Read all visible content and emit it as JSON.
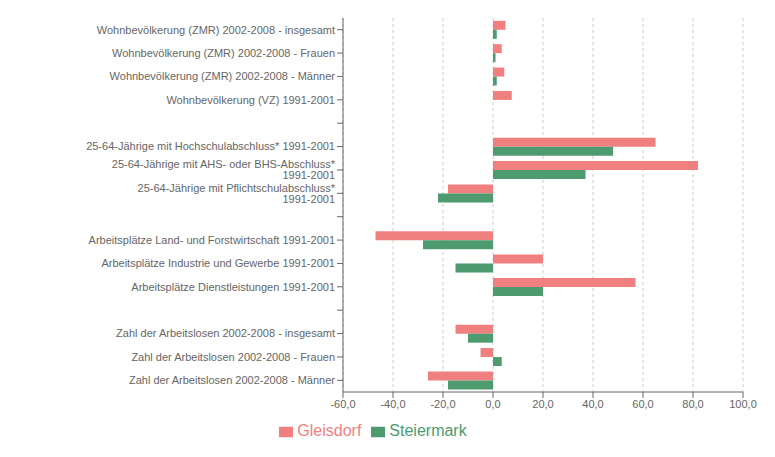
{
  "chart_data": {
    "type": "bar",
    "orientation": "horizontal",
    "categories": [
      "Wohnbevölkerung (ZMR) 2002-2008 - insgesamt",
      "Wohnbevölkerung (ZMR) 2002-2008 - Frauen",
      "Wohnbevölkerung (ZMR) 2002-2008 - Männer",
      "Wohnbevölkerung (VZ) 1991-2001",
      null,
      "25-64-Jährige mit Hochschulabschluss* 1991-2001",
      "25-64-Jährige mit AHS- oder BHS-Abschluss* 1991-2001",
      "25-64-Jährige mit Pflichtschulabschluss* 1991-2001",
      null,
      "Arbeitsplätze Land- und Forstwirtschaft 1991-2001",
      "Arbeitsplätze Industrie und Gewerbe 1991-2001",
      "Arbeitsplätze Dienstleistungen 1991-2001",
      null,
      "Zahl der Arbeitslosen 2002-2008 - insgesamt",
      "Zahl der Arbeitslosen 2002-2008 - Frauen",
      "Zahl der Arbeitslosen 2002-2008 - Männer"
    ],
    "series": [
      {
        "name": "Gleisdorf",
        "color": "#f08080",
        "values": [
          5.0,
          3.5,
          4.5,
          7.5,
          0,
          65.0,
          82.0,
          -18.0,
          0,
          -47.0,
          20.0,
          57.0,
          0,
          -15.0,
          -5.0,
          -26.0
        ]
      },
      {
        "name": "Steiermark",
        "color": "#4d9b6e",
        "values": [
          1.5,
          1.0,
          1.5,
          0.0,
          0,
          48.0,
          37.0,
          -22.0,
          0,
          -28.0,
          -15.0,
          20.0,
          0,
          -10.0,
          3.5,
          -18.0
        ]
      }
    ],
    "xlim": [
      -60,
      100
    ],
    "xticks": [
      {
        "value": -60,
        "label": "-60,0"
      },
      {
        "value": -40,
        "label": "-40,0"
      },
      {
        "value": -20,
        "label": "-20,0"
      },
      {
        "value": 0,
        "label": "0,0"
      },
      {
        "value": 20,
        "label": "20,0"
      },
      {
        "value": 40,
        "label": "40,0"
      },
      {
        "value": 60,
        "label": "60,0"
      },
      {
        "value": 80,
        "label": "80,0"
      },
      {
        "value": 100,
        "label": "100,0"
      }
    ],
    "grid": true,
    "legend": "bottom"
  }
}
